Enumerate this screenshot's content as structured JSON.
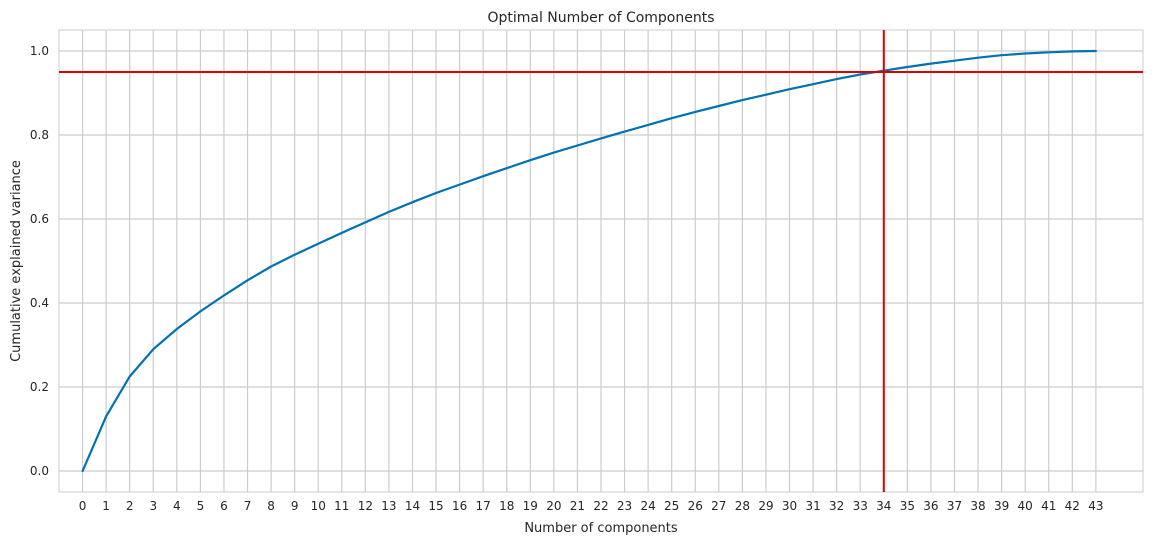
{
  "chart_data": {
    "type": "line",
    "title": "Optimal Number of Components",
    "xlabel": "Number of components",
    "ylabel": "Cumulative explained variance",
    "xlim": [
      -1,
      45
    ],
    "ylim": [
      -0.05,
      1.05
    ],
    "x_ticks": [
      0,
      1,
      2,
      3,
      4,
      5,
      6,
      7,
      8,
      9,
      10,
      11,
      12,
      13,
      14,
      15,
      16,
      17,
      18,
      19,
      20,
      21,
      22,
      23,
      24,
      25,
      26,
      27,
      28,
      29,
      30,
      31,
      32,
      33,
      34,
      35,
      36,
      37,
      38,
      39,
      40,
      41,
      42,
      43
    ],
    "y_ticks": [
      0.0,
      0.2,
      0.4,
      0.6,
      0.8,
      1.0
    ],
    "y_tick_labels": [
      "0.0",
      "0.2",
      "0.4",
      "0.6",
      "0.8",
      "1.0"
    ],
    "grid": true,
    "series": [
      {
        "x": [
          0,
          1,
          2,
          3,
          4,
          5,
          6,
          7,
          8,
          9,
          10,
          11,
          12,
          13,
          14,
          15,
          16,
          17,
          18,
          19,
          20,
          21,
          22,
          23,
          24,
          25,
          26,
          27,
          28,
          29,
          30,
          31,
          32,
          33,
          34,
          35,
          36,
          37,
          38,
          39,
          40,
          41,
          42,
          43
        ],
        "values": [
          0.0,
          0.13,
          0.225,
          0.29,
          0.338,
          0.38,
          0.418,
          0.454,
          0.487,
          0.515,
          0.541,
          0.567,
          0.592,
          0.617,
          0.64,
          0.662,
          0.682,
          0.702,
          0.721,
          0.74,
          0.758,
          0.775,
          0.792,
          0.808,
          0.824,
          0.84,
          0.855,
          0.869,
          0.883,
          0.896,
          0.909,
          0.921,
          0.933,
          0.944,
          0.953,
          0.962,
          0.97,
          0.977,
          0.984,
          0.99,
          0.994,
          0.997,
          0.999,
          1.0
        ],
        "color": "#0072b2"
      }
    ],
    "reference_lines": [
      {
        "orientation": "horizontal",
        "value": 0.95,
        "color": "#dd0000"
      },
      {
        "orientation": "vertical",
        "value": 34,
        "color": "#dd0000"
      }
    ],
    "colors": {
      "grid": "#cccccc",
      "axes_edge": "#cccccc",
      "background": "#ffffff"
    }
  }
}
